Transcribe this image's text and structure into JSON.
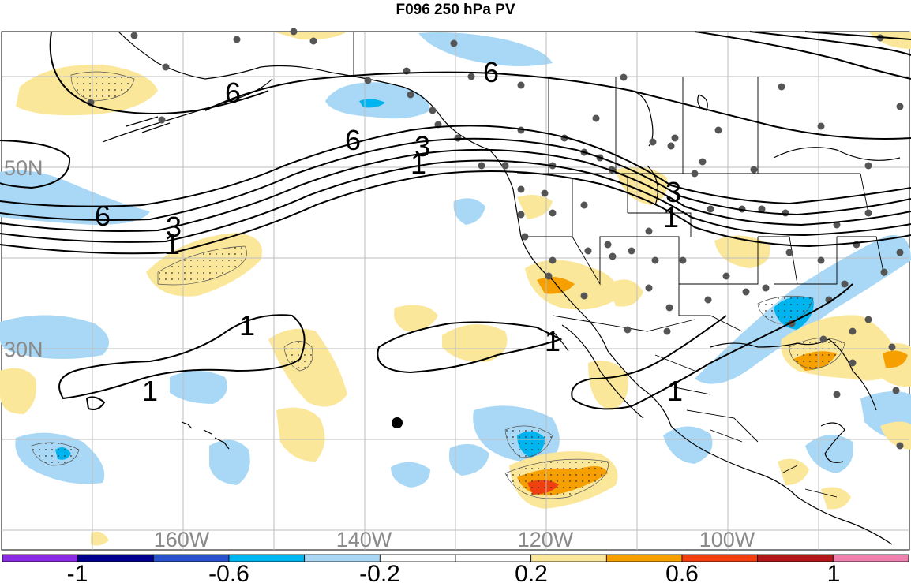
{
  "title": "F096 250 hPa PV",
  "axes": {
    "lat_labels": [
      "50N",
      "30N"
    ],
    "lon_labels": [
      "160W",
      "140W",
      "120W",
      "100W"
    ]
  },
  "contours": {
    "labels": [
      "6",
      "6",
      "6",
      "6",
      "3",
      "3",
      "3",
      "1",
      "1",
      "1",
      "1",
      "1",
      "1",
      "1"
    ]
  },
  "colorbar": {
    "tick_labels": [
      "-1",
      "-0.6",
      "-0.2",
      "0.2",
      "0.6",
      "1"
    ],
    "bins": [
      {
        "color": "#8a2be2"
      },
      {
        "color": "#00008b"
      },
      {
        "color": "#2850c8"
      },
      {
        "color": "#00b4f0"
      },
      {
        "color": "#a8d8f5"
      },
      {
        "color": "#ffffff"
      },
      {
        "color": "#ffffff"
      },
      {
        "color": "#fbe79a"
      },
      {
        "color": "#f5a000"
      },
      {
        "color": "#f04010"
      },
      {
        "color": "#b01818"
      },
      {
        "color": "#f080b0"
      }
    ]
  },
  "colors": {
    "neg_weak": "#a8d8f5",
    "neg_mid": "#00b4f0",
    "pos_weak": "#fbe79a",
    "pos_mid": "#f5a000",
    "pos_strong": "#f04010"
  }
}
